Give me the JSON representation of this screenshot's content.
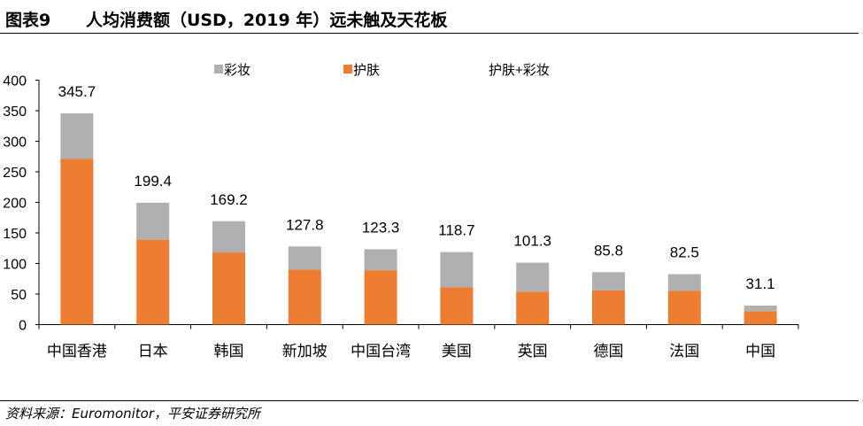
{
  "header": {
    "figure_no": "图表9",
    "title": "人均消费额（USD，2019 年）远未触及天花板"
  },
  "footer": {
    "source": "资料来源：Euromonitor，平安证券研究所"
  },
  "chart_data": {
    "type": "bar",
    "stacked": true,
    "categories": [
      "中国香港",
      "日本",
      "韩国",
      "新加坡",
      "中国台湾",
      "美国",
      "英国",
      "德国",
      "法国",
      "中国"
    ],
    "series": [
      {
        "name": "护肤",
        "color": "#ED7D31",
        "values": [
          271,
          139,
          118,
          90,
          89,
          61,
          54,
          56,
          55,
          22
        ]
      },
      {
        "name": "彩妆",
        "color": "#B0B0B2",
        "values": [
          74.7,
          60.4,
          51.2,
          37.8,
          34.3,
          57.7,
          47.3,
          29.8,
          27.5,
          9.1
        ]
      }
    ],
    "totals": {
      "name": "护肤+彩妆",
      "values": [
        345.7,
        199.4,
        169.2,
        127.8,
        123.3,
        118.7,
        101.3,
        85.8,
        82.5,
        31.1
      ],
      "labels": [
        "345.7",
        "199.4",
        "169.2",
        "127.8",
        "123.3",
        "118.7",
        "101.3",
        "85.8",
        "82.5",
        "31.1"
      ]
    },
    "ylim": [
      0,
      400
    ],
    "yticks": [
      0,
      50,
      100,
      150,
      200,
      250,
      300,
      350,
      400
    ],
    "grid": false,
    "legend": "top"
  }
}
